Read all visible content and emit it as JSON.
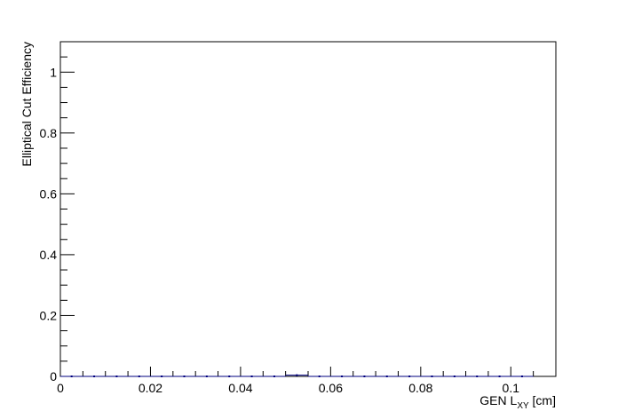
{
  "chart_data": {
    "type": "scatter",
    "title": "",
    "xlabel_main": "GEN L",
    "xlabel_sub": "XY",
    "xlabel_tail": " [cm]",
    "ylabel": "Elliptical Cut Efficiency",
    "xlim": [
      0,
      0.11
    ],
    "ylim": [
      0,
      1.1
    ],
    "x_ticks": [
      0,
      0.02,
      0.04,
      0.06,
      0.08,
      0.1
    ],
    "x_tick_labels": [
      "0",
      "0.02",
      "0.04",
      "0.06",
      "0.08",
      "0.1"
    ],
    "y_ticks": [
      0,
      0.2,
      0.4,
      0.6,
      0.8,
      1
    ],
    "y_tick_labels": [
      "0",
      "0.2",
      "0.4",
      "0.6",
      "0.8",
      "1"
    ],
    "grid": false,
    "series": [
      {
        "color": "#00007f",
        "x": [
          0.0025,
          0.0075,
          0.0125,
          0.0175,
          0.0225,
          0.0275,
          0.0325,
          0.0375,
          0.0425,
          0.0475,
          0.0525,
          0.0575,
          0.0625,
          0.0675,
          0.0725,
          0.0775,
          0.0825,
          0.0875,
          0.0925,
          0.0975,
          0.1025
        ],
        "values": [
          0,
          0,
          0,
          0,
          0,
          0,
          0,
          0,
          0,
          0,
          0.004,
          0,
          0,
          0,
          0,
          0,
          0,
          0,
          0,
          0,
          0
        ]
      }
    ]
  }
}
